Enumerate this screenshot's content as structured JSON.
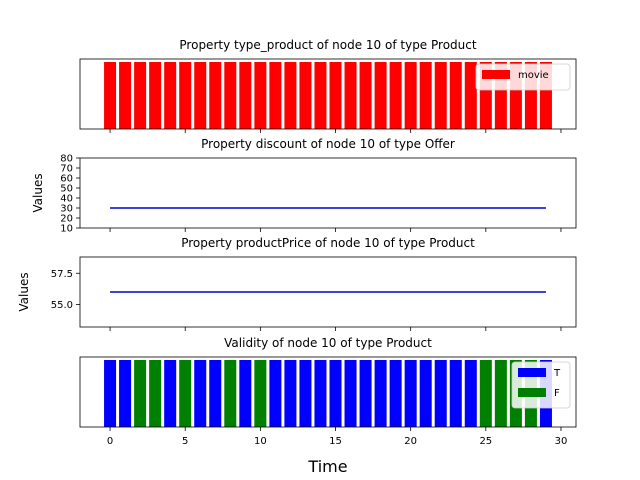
{
  "chart_data": [
    {
      "type": "bar",
      "title": "Property type_product of node 10 of type Product",
      "x": [
        0,
        1,
        2,
        3,
        4,
        5,
        6,
        7,
        8,
        9,
        10,
        11,
        12,
        13,
        14,
        15,
        16,
        17,
        18,
        19,
        20,
        21,
        22,
        23,
        24,
        25,
        26,
        27,
        28,
        29
      ],
      "values": [
        1,
        1,
        1,
        1,
        1,
        1,
        1,
        1,
        1,
        1,
        1,
        1,
        1,
        1,
        1,
        1,
        1,
        1,
        1,
        1,
        1,
        1,
        1,
        1,
        1,
        1,
        1,
        1,
        1,
        1
      ],
      "categories_per_x": [
        "movie",
        "movie",
        "movie",
        "movie",
        "movie",
        "movie",
        "movie",
        "movie",
        "movie",
        "movie",
        "movie",
        "movie",
        "movie",
        "movie",
        "movie",
        "movie",
        "movie",
        "movie",
        "movie",
        "movie",
        "movie",
        "movie",
        "movie",
        "movie",
        "movie",
        "movie",
        "movie",
        "movie",
        "movie",
        "movie"
      ],
      "legend": [
        {
          "label": "movie",
          "color": "#ff0000"
        }
      ],
      "legend_position": "top-right",
      "xlim": [
        -2,
        31
      ],
      "show_yticks": false
    },
    {
      "type": "line",
      "title": "Property discount of node 10 of type Offer",
      "ylabel": "Values",
      "x": [
        0,
        29
      ],
      "y": [
        30,
        30
      ],
      "color": "#0000cc",
      "ylim": [
        10,
        80
      ],
      "yticks": [
        10,
        20,
        30,
        40,
        50,
        60,
        70,
        80
      ],
      "yticklabels": [
        "10",
        "20",
        "30",
        "40",
        "50",
        "60",
        "70",
        "80"
      ],
      "xlim": [
        -2,
        31
      ]
    },
    {
      "type": "line",
      "title": "Property productPrice of node 10 of type Product",
      "ylabel": "Values",
      "x": [
        0,
        29
      ],
      "y": [
        56,
        56
      ],
      "color": "#0000cc",
      "ylim": [
        53.2,
        58.8
      ],
      "yticks": [
        55.0,
        57.5
      ],
      "yticklabels": [
        "55.0",
        "57.5"
      ],
      "xlim": [
        -2,
        31
      ]
    },
    {
      "type": "bar",
      "title": "Validity of node 10 of type Product",
      "xlabel": "Time",
      "x": [
        0,
        1,
        2,
        3,
        4,
        5,
        6,
        7,
        8,
        9,
        10,
        11,
        12,
        13,
        14,
        15,
        16,
        17,
        18,
        19,
        20,
        21,
        22,
        23,
        24,
        25,
        26,
        27,
        28,
        29
      ],
      "values": [
        1,
        1,
        1,
        1,
        1,
        1,
        1,
        1,
        1,
        1,
        1,
        1,
        1,
        1,
        1,
        1,
        1,
        1,
        1,
        1,
        1,
        1,
        1,
        1,
        1,
        1,
        1,
        1,
        1,
        1
      ],
      "categories_per_x": [
        "T",
        "T",
        "F",
        "F",
        "T",
        "F",
        "T",
        "T",
        "F",
        "T",
        "F",
        "T",
        "T",
        "T",
        "T",
        "T",
        "T",
        "T",
        "T",
        "T",
        "T",
        "T",
        "T",
        "T",
        "T",
        "F",
        "F",
        "F",
        "F",
        "T"
      ],
      "legend": [
        {
          "label": "T",
          "color": "#0000ff"
        },
        {
          "label": "F",
          "color": "#008000"
        }
      ],
      "legend_position": "top-right",
      "xlim": [
        -2,
        31
      ],
      "xticks": [
        0,
        5,
        10,
        15,
        20,
        25,
        30
      ],
      "xticklabels": [
        "0",
        "5",
        "10",
        "15",
        "20",
        "25",
        "30"
      ],
      "show_yticks": false
    }
  ]
}
